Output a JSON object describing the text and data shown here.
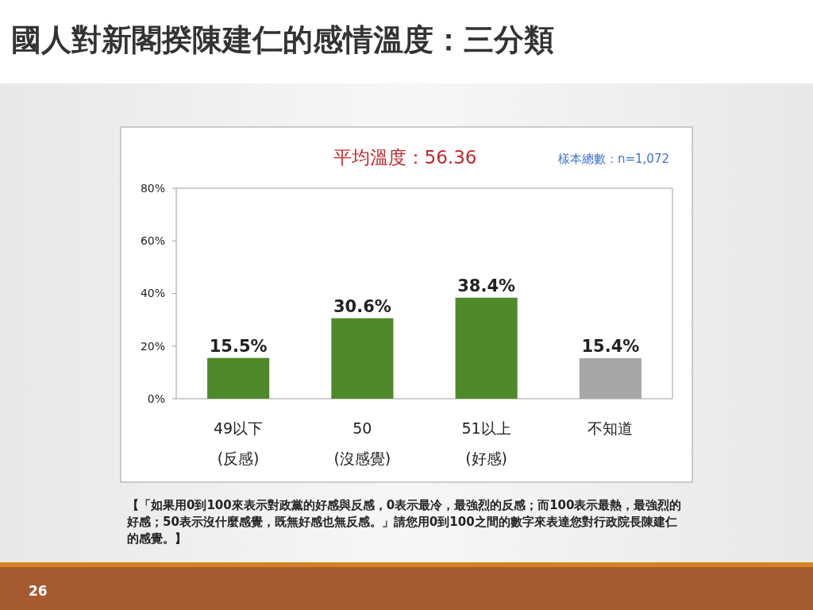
{
  "chart_data": {
    "type": "bar",
    "title": "國人對新閣揆陳建仁的感情溫度：三分類",
    "categories": [
      "49以下\n(反感)",
      "50\n(沒感覺)",
      "51以上\n(好感)",
      "不知道"
    ],
    "values": [
      15.5,
      30.6,
      38.4,
      15.4
    ],
    "colors": [
      "#4e8a2a",
      "#4e8a2a",
      "#4e8a2a",
      "#a6a6a6"
    ],
    "value_labels": [
      "15.5%",
      "30.6%",
      "38.4%",
      "15.4%"
    ],
    "ylim": [
      0,
      80
    ],
    "yticks": [
      {
        "value": 0,
        "label": "0%"
      },
      {
        "value": 20,
        "label": "20%"
      },
      {
        "value": 40,
        "label": "40%"
      },
      {
        "value": 60,
        "label": "60%"
      },
      {
        "value": 80,
        "label": "80%"
      }
    ],
    "grid": false,
    "annotations": [
      "平均溫度：56.36",
      "樣本總數：n=1,072",
      "【「如果用0到100來表示對政黨的好感與反感，0表示最冷，最強烈的反感；而100表示最熱，最強烈的好感；50表示沒什麼感覺，既無好感也無反感。」請您用0到100之間的數字來表達您對行政院長陳建仁的感覺。】",
      "26"
    ]
  }
}
